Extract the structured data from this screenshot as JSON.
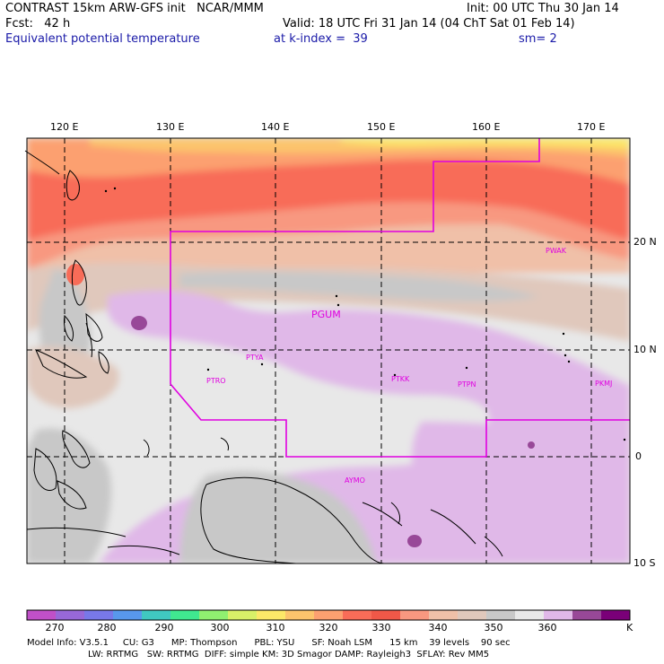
{
  "header": {
    "line1_left": "CONTRAST 15km ARW-GFS init   NCAR/MMM",
    "line1_right": "Init: 00 UTC Thu 30 Jan 14",
    "line2_left": "Fcst:   42 h",
    "line2_right": "Valid: 18 UTC Fri 31 Jan 14 (04 ChT Sat 01 Feb 14)",
    "line3_left": "Equivalent potential temperature",
    "line3_mid": "at k-index =  39",
    "line3_right": "sm= 2"
  },
  "map": {
    "longitude_labels": [
      "120 E",
      "130 E",
      "140 E",
      "150 E",
      "160 E",
      "170 E"
    ],
    "latitude_labels": [
      "20 N",
      "10 N",
      "0",
      "10 S"
    ],
    "stations": [
      "PGUM",
      "PTYA",
      "PTRO",
      "PTKK",
      "PTPN",
      "PKMJ",
      "PWAK",
      "AYMO"
    ],
    "domain_boundary_color": "#e000e0"
  },
  "colorbar": {
    "labels": [
      "270",
      "280",
      "290",
      "300",
      "310",
      "320",
      "330",
      "340",
      "350",
      "360"
    ],
    "unit": "K",
    "colors": [
      "#c050c8",
      "#9868d8",
      "#7878e8",
      "#5898ec",
      "#40c8c0",
      "#40e890",
      "#90f070",
      "#d8f068",
      "#fce868",
      "#fcc46c",
      "#fca070",
      "#f86c58",
      "#f05848",
      "#f89880",
      "#f0c0a8",
      "#e0c8bc",
      "#c8c8c8",
      "#e8e8e8",
      "#e0b8e8",
      "#984898",
      "#7a0078"
    ]
  },
  "footer": {
    "line1": "Model Info: V3.5.1     CU: G3      MP: Thompson      PBL: YSU      SF: Noah LSM      15 km    39 levels    90 sec",
    "line2": "LW: RRTMG   SW: RRTMG  DIFF: simple KM: 3D Smagor DAMP: Rayleigh3  SFLAY: Rev MM5"
  }
}
